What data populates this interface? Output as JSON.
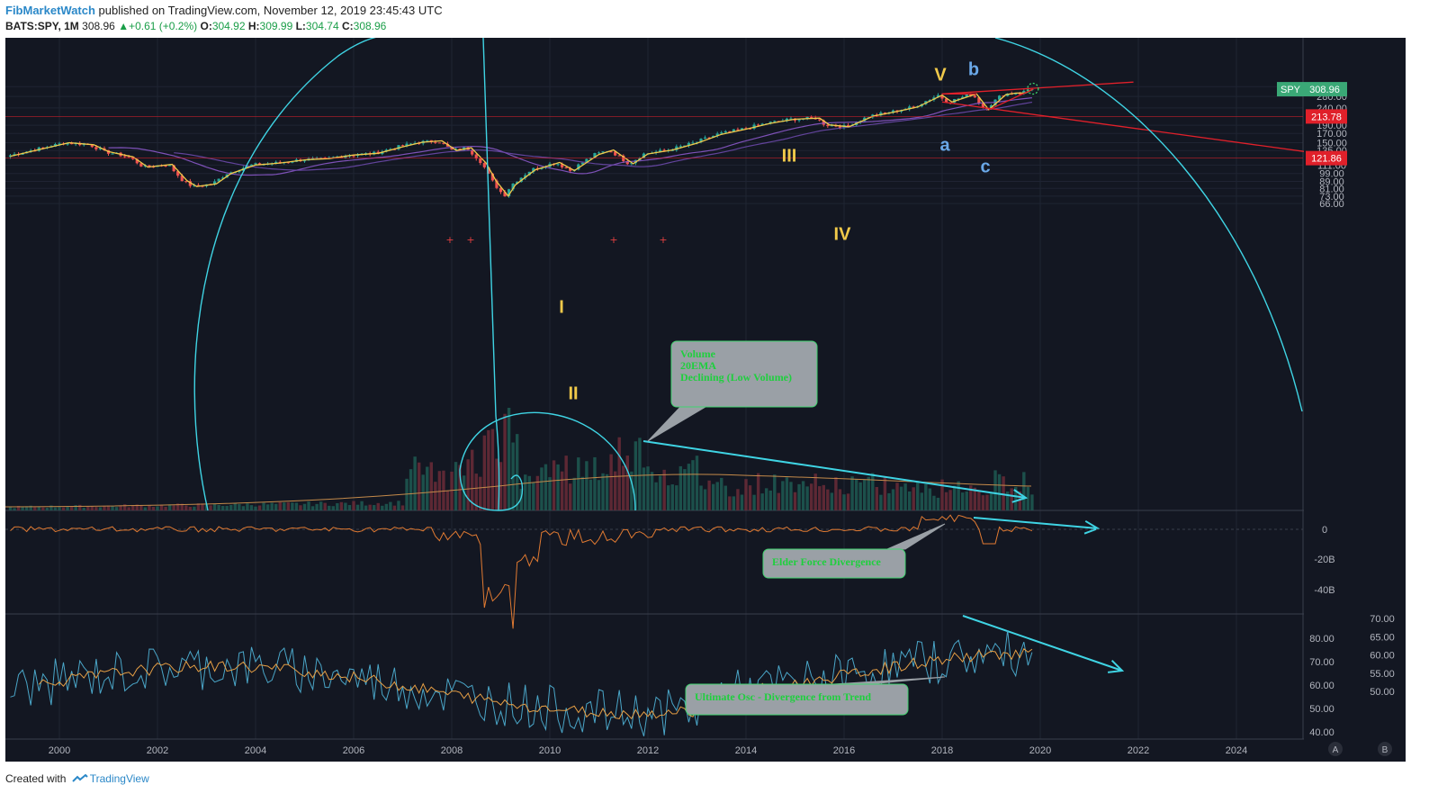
{
  "header": {
    "author": "FibMarketWatch",
    "published": "published on TradingView.com, November 12, 2019 23:45:43 UTC",
    "symbol": "BATS:SPY, 1M",
    "price": "308.96",
    "change": "+0.61 (+0.2%)",
    "o_label": "O:",
    "o_value": "304.92",
    "h_label": "H:",
    "h_value": "309.99",
    "l_label": "L:",
    "l_value": "304.74",
    "c_label": "C:",
    "c_value": "308.96"
  },
  "footer": {
    "created_with": "Created with",
    "brand": "TradingView"
  },
  "colors": {
    "background": "#131722",
    "up": "#26a69a",
    "down": "#ef5350",
    "wave": "#f0c94a",
    "arc": "#3fd4e4",
    "trend": "#e0202a",
    "ma": "#8a58c8",
    "ultimate": "#4aa6c8",
    "ultimate_ma": "#e69f45",
    "elder": "#e07a32",
    "note_bg": "#9aa0a6",
    "note_text": "#1fcf3e"
  },
  "price_axis": {
    "scale": "log",
    "ticks": [
      "320.00",
      "280.00",
      "240.00",
      "190.00",
      "170.00",
      "150.00",
      "135.00",
      "111.00",
      "99.00",
      "89.00",
      "81.00",
      "73.00",
      "66.00"
    ]
  },
  "price_labels": [
    {
      "name": "SPY",
      "value": "308.96",
      "color": "#3aa876"
    },
    {
      "name": "",
      "value": "213.78",
      "color": "#e0202a"
    },
    {
      "name": "",
      "value": "121.86",
      "color": "#e0202a"
    }
  ],
  "elder_axis": {
    "ticks": [
      "0",
      "-20B",
      "-40B"
    ]
  },
  "ultimate_axis": {
    "left_ticks": [
      "80.00",
      "70.00",
      "60.00",
      "50.00",
      "40.00"
    ],
    "right_ticks": [
      "70.00",
      "65.00",
      "60.00",
      "55.00",
      "50.00"
    ]
  },
  "time_axis": {
    "ticks": [
      "2000",
      "2002",
      "2004",
      "2006",
      "2008",
      "2010",
      "2012",
      "2014",
      "2016",
      "2018",
      "2020",
      "2022",
      "2024"
    ]
  },
  "scale_buttons": [
    "A",
    "B"
  ],
  "wave_labels": {
    "w1": "I",
    "w2": "II",
    "w3": "III",
    "w4": "IV",
    "w5": "V",
    "wa": "a",
    "wb": "b",
    "wc": "c"
  },
  "notes": {
    "volume": [
      "Volume",
      "20EMA",
      "Declining (Low Volume)"
    ],
    "elder": "Elder Force Divergence",
    "ultimate": "Ultimate Osc - Divergence from Trend"
  },
  "chart_data": {
    "type": "candlestick",
    "symbol": "BATS:SPY",
    "interval": "1M",
    "scale": "log",
    "x_range": [
      "1999",
      "2025"
    ],
    "y_range": [
      60,
      340
    ],
    "price_path": [
      [
        "1999.0",
        125
      ],
      [
        "1999.5",
        135
      ],
      [
        "2000.2",
        150
      ],
      [
        "2000.7",
        146
      ],
      [
        "2001.0",
        133
      ],
      [
        "2001.5",
        124
      ],
      [
        "2001.8",
        108
      ],
      [
        "2002.3",
        112
      ],
      [
        "2002.6",
        90
      ],
      [
        "2002.8",
        83
      ],
      [
        "2003.2",
        86
      ],
      [
        "2003.5",
        99
      ],
      [
        "2004.0",
        111
      ],
      [
        "2004.5",
        114
      ],
      [
        "2005.0",
        119
      ],
      [
        "2005.5",
        121
      ],
      [
        "2006.0",
        127
      ],
      [
        "2006.5",
        130
      ],
      [
        "2007.0",
        142
      ],
      [
        "2007.4",
        151
      ],
      [
        "2007.8",
        154
      ],
      [
        "2008.1",
        135
      ],
      [
        "2008.4",
        140
      ],
      [
        "2008.7",
        114
      ],
      [
        "2008.9",
        90
      ],
      [
        "2009.15",
        73
      ],
      [
        "2009.3",
        85
      ],
      [
        "2009.7",
        104
      ],
      [
        "2010.2",
        115
      ],
      [
        "2010.5",
        103
      ],
      [
        "2011.0",
        128
      ],
      [
        "2011.3",
        136
      ],
      [
        "2011.7",
        113
      ],
      [
        "2012.0",
        129
      ],
      [
        "2012.5",
        136
      ],
      [
        "2013.0",
        149
      ],
      [
        "2013.5",
        168
      ],
      [
        "2014.0",
        180
      ],
      [
        "2014.5",
        195
      ],
      [
        "2015.0",
        206
      ],
      [
        "2015.5",
        209
      ],
      [
        "2015.7",
        191
      ],
      [
        "2016.1",
        186
      ],
      [
        "2016.6",
        215
      ],
      [
        "2017.0",
        226
      ],
      [
        "2017.5",
        243
      ],
      [
        "2018.0",
        285
      ],
      [
        "2018.2",
        260
      ],
      [
        "2018.7",
        290
      ],
      [
        "2018.95",
        234
      ],
      [
        "2019.3",
        287
      ],
      [
        "2019.5",
        293
      ],
      [
        "2019.7",
        294
      ],
      [
        "2019.85",
        309
      ]
    ],
    "last": {
      "open": 304.92,
      "high": 309.99,
      "low": 304.74,
      "close": 308.96,
      "change": 0.61,
      "change_pct": 0.2
    },
    "horizontal_levels": [
      213.78,
      121.86
    ]
  }
}
